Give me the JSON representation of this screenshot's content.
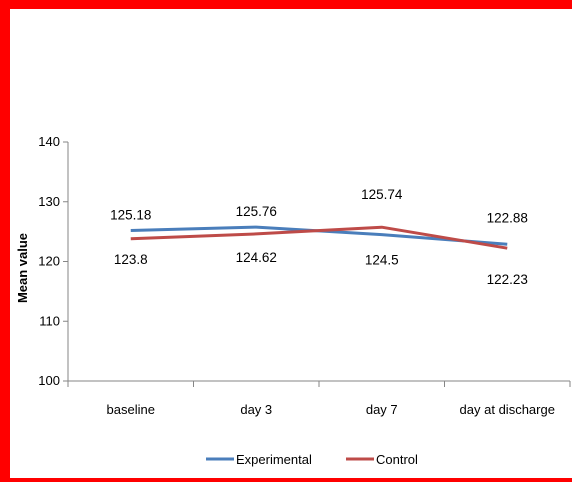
{
  "chart_data": {
    "type": "line",
    "title": "",
    "xlabel": "",
    "ylabel": "Mean value",
    "ylim": [
      100,
      140
    ],
    "yticks": [
      "100",
      "110",
      "120",
      "130",
      "140"
    ],
    "categories": [
      "baseline",
      "day 3",
      "day 7",
      "day at discharge"
    ],
    "series": [
      {
        "name": "Experimental",
        "color": "#4a7ebb",
        "values": [
          125.18,
          125.76,
          124.5,
          122.88
        ],
        "labels": [
          "125.18",
          "125.76",
          "124.5",
          "122.88"
        ]
      },
      {
        "name": "Control",
        "color": "#be4b48",
        "values": [
          123.8,
          124.62,
          125.74,
          122.23
        ],
        "labels": [
          "123.8",
          "124.62",
          "125.74",
          "122.23"
        ]
      }
    ],
    "grid": false,
    "legend": "bottom"
  }
}
